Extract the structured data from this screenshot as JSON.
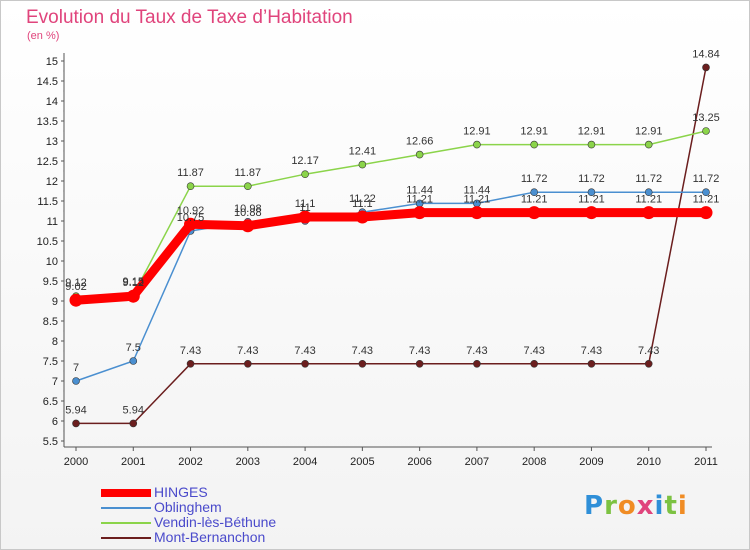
{
  "header": {
    "title": "Evolution du Taux de Taxe d’Habitation",
    "unit": "(en %)"
  },
  "logo": {
    "text": "Proxiti",
    "colors": [
      "#2f8fd8",
      "#7cc242",
      "#f08c24",
      "#e0447c",
      "#2f8fd8",
      "#7cc242",
      "#f08c24"
    ]
  },
  "chart_data": {
    "type": "line",
    "title": "Evolution du Taux de Taxe d’Habitation",
    "ylabel": "(en %)",
    "xlabel": "",
    "x": [
      "2000",
      "2001",
      "2002",
      "2003",
      "2004",
      "2005",
      "2006",
      "2007",
      "2008",
      "2009",
      "2010",
      "2011"
    ],
    "ylim": [
      5.5,
      15
    ],
    "yticks": [
      "5.5",
      "6",
      "6.5",
      "7",
      "7.5",
      "8",
      "8.5",
      "9",
      "9.5",
      "10",
      "10.5",
      "11",
      "11.5",
      "12",
      "12.5",
      "13",
      "13.5",
      "14",
      "14.5",
      "15"
    ],
    "grid": false,
    "legend": "bottom-left",
    "series": [
      {
        "name": "HINGES",
        "color": "#ff0000",
        "values": [
          9.02,
          9.12,
          10.92,
          10.88,
          11.1,
          11.1,
          11.21,
          11.21,
          11.21,
          11.21,
          11.21,
          11.21
        ],
        "labels": [
          "9.02",
          "9.12",
          "10.92",
          "10.88",
          "11.1",
          "11.1",
          "11.21",
          "11.21",
          "11.21",
          "11.21",
          "11.21",
          "11.21"
        ]
      },
      {
        "name": "Oblinghem",
        "color": "#4a8fd0",
        "values": [
          7,
          7.5,
          10.75,
          10.98,
          11,
          11.22,
          11.44,
          11.44,
          11.72,
          11.72,
          11.72,
          11.72
        ],
        "labels": [
          "7",
          "7.5",
          "10.75",
          "10.98",
          "11",
          "11.22",
          "11.44",
          "11.44",
          "11.72",
          "11.72",
          "11.72",
          "11.72"
        ]
      },
      {
        "name": "Vendin-lès-Béthune",
        "color": "#8bd44a",
        "values": [
          9.12,
          9.15,
          11.87,
          11.87,
          12.17,
          12.41,
          12.66,
          12.91,
          12.91,
          12.91,
          12.91,
          13.25
        ],
        "labels": [
          "9.12",
          "9.15",
          "11.87",
          "11.87",
          "12.17",
          "12.41",
          "12.66",
          "12.91",
          "12.91",
          "12.91",
          "12.91",
          "13.25"
        ]
      },
      {
        "name": "Mont-Bernanchon",
        "color": "#6b1e1e",
        "values": [
          5.94,
          5.94,
          7.43,
          7.43,
          7.43,
          7.43,
          7.43,
          7.43,
          7.43,
          7.43,
          7.43,
          14.84
        ],
        "labels": [
          "5.94",
          "5.94",
          "7.43",
          "7.43",
          "7.43",
          "7.43",
          "7.43",
          "7.43",
          "7.43",
          "7.43",
          "7.43",
          "14.84"
        ]
      }
    ]
  }
}
